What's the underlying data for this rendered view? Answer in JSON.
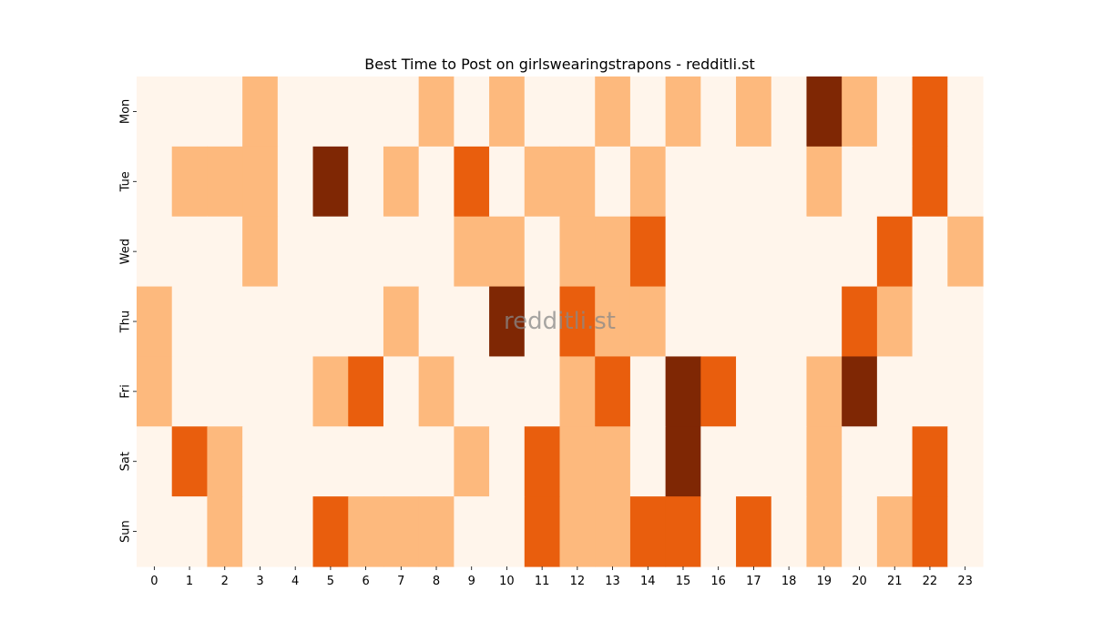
{
  "chart_data": {
    "type": "heatmap",
    "title": "Best Time to Post on girlswearingstrapons - redditli.st",
    "xlabel": "",
    "ylabel": "",
    "x_categories": [
      "0",
      "1",
      "2",
      "3",
      "4",
      "5",
      "6",
      "7",
      "8",
      "9",
      "10",
      "11",
      "12",
      "13",
      "14",
      "15",
      "16",
      "17",
      "18",
      "19",
      "20",
      "21",
      "22",
      "23"
    ],
    "y_categories": [
      "Mon",
      "Tue",
      "Wed",
      "Thu",
      "Fri",
      "Sat",
      "Sun"
    ],
    "values": [
      [
        0,
        0,
        0,
        1,
        0,
        0,
        0,
        0,
        1,
        0,
        1,
        0,
        0,
        1,
        0,
        1,
        0,
        1,
        0,
        3,
        1,
        0,
        2,
        0
      ],
      [
        0,
        1,
        1,
        1,
        0,
        3,
        0,
        1,
        0,
        2,
        0,
        1,
        1,
        0,
        1,
        0,
        0,
        0,
        0,
        1,
        0,
        0,
        2,
        0
      ],
      [
        0,
        0,
        0,
        1,
        0,
        0,
        0,
        0,
        0,
        1,
        1,
        0,
        1,
        1,
        2,
        0,
        0,
        0,
        0,
        0,
        0,
        2,
        0,
        1
      ],
      [
        1,
        0,
        0,
        0,
        0,
        0,
        0,
        1,
        0,
        0,
        3,
        0,
        2,
        1,
        1,
        0,
        0,
        0,
        0,
        0,
        2,
        1,
        0,
        0
      ],
      [
        1,
        0,
        0,
        0,
        0,
        1,
        2,
        0,
        1,
        0,
        0,
        0,
        1,
        2,
        0,
        3,
        2,
        0,
        0,
        1,
        3,
        0,
        0,
        0
      ],
      [
        0,
        2,
        1,
        0,
        0,
        0,
        0,
        0,
        0,
        1,
        0,
        2,
        1,
        1,
        0,
        3,
        0,
        0,
        0,
        1,
        0,
        0,
        2,
        0
      ],
      [
        0,
        0,
        1,
        0,
        0,
        2,
        1,
        1,
        1,
        0,
        0,
        2,
        1,
        1,
        2,
        2,
        0,
        2,
        0,
        1,
        0,
        1,
        2,
        0
      ]
    ],
    "colors": [
      "#fff5eb",
      "#fdb97d",
      "#e95e0d",
      "#7f2704"
    ],
    "colormap": "Oranges",
    "colorbar": false,
    "watermark": "redditli.st"
  }
}
